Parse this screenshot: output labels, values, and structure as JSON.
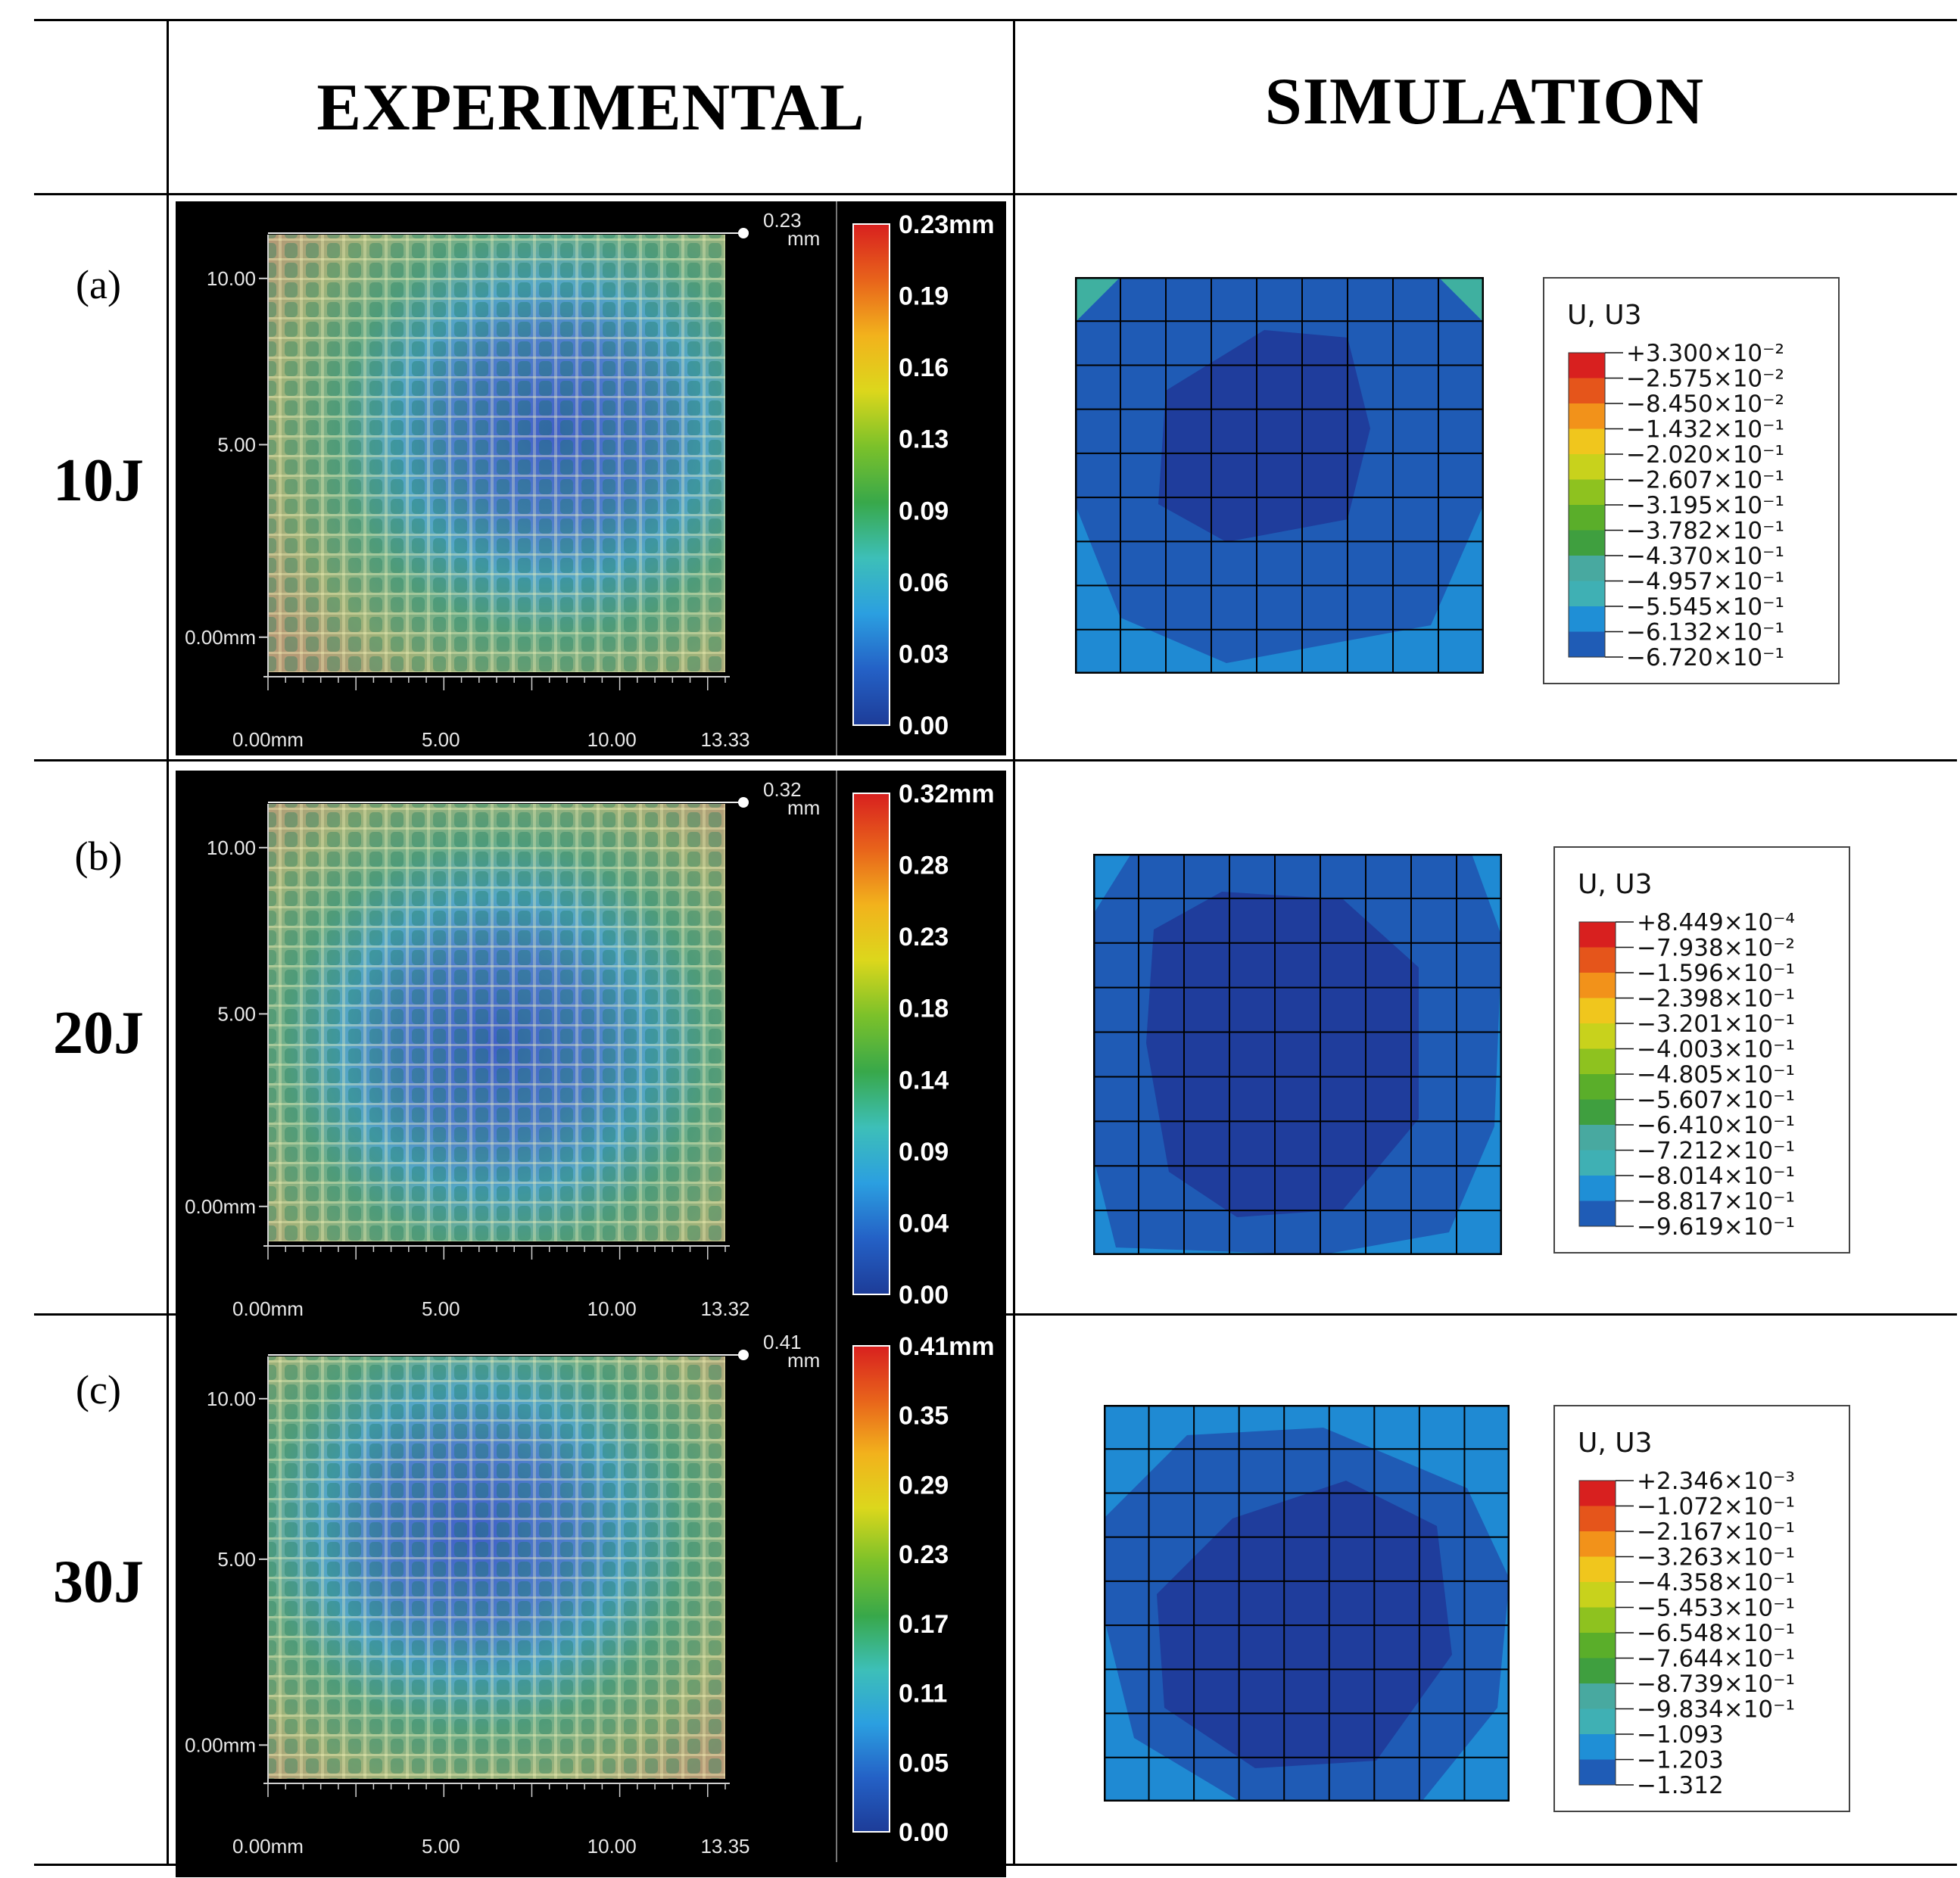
{
  "header": {
    "experimental": "EXPERIMENTAL",
    "simulation": "SIMULATION"
  },
  "colors": {
    "scale": [
      "#1c3f94",
      "#1f5cb6",
      "#1f8fd6",
      "#3fb0b4",
      "#48a9a0",
      "#3f9f3f",
      "#5aae2a",
      "#8ec21f",
      "#c8d21c",
      "#f0c61d",
      "#f2921a",
      "#e5551b",
      "#d8201f"
    ],
    "sim_dark": "#1f3d9c",
    "sim_mid": "#1f5bb5",
    "sim_light": "#1f8ad3"
  },
  "rows": [
    {
      "tag": "(a)",
      "label": "10J",
      "exp": {
        "top_label": "0.23",
        "top_unit": "mm",
        "y_ticks": [
          "10.00",
          "5.00",
          "0.00mm"
        ],
        "x_ticks": [
          "0.00mm",
          "5.00",
          "10.00",
          "13.33"
        ],
        "colorbar": [
          "0.23mm",
          "0.19",
          "0.16",
          "0.13",
          "0.09",
          "0.06",
          "0.03",
          "0.00"
        ]
      },
      "sim": {
        "title": "U, U3",
        "values": [
          "+3.300×10⁻²",
          "−2.575×10⁻²",
          "−8.450×10⁻²",
          "−1.432×10⁻¹",
          "−2.020×10⁻¹",
          "−2.607×10⁻¹",
          "−3.195×10⁻¹",
          "−3.782×10⁻¹",
          "−4.370×10⁻¹",
          "−4.957×10⁻¹",
          "−5.545×10⁻¹",
          "−6.132×10⁻¹",
          "−6.720×10⁻¹"
        ]
      }
    },
    {
      "tag": "(b)",
      "label": "20J",
      "exp": {
        "top_label": "0.32",
        "top_unit": "mm",
        "y_ticks": [
          "10.00",
          "5.00",
          "0.00mm"
        ],
        "x_ticks": [
          "0.00mm",
          "5.00",
          "10.00",
          "13.32"
        ],
        "colorbar": [
          "0.32mm",
          "0.28",
          "0.23",
          "0.18",
          "0.14",
          "0.09",
          "0.04",
          "0.00"
        ]
      },
      "sim": {
        "title": "U, U3",
        "values": [
          "+8.449×10⁻⁴",
          "−7.938×10⁻²",
          "−1.596×10⁻¹",
          "−2.398×10⁻¹",
          "−3.201×10⁻¹",
          "−4.003×10⁻¹",
          "−4.805×10⁻¹",
          "−5.607×10⁻¹",
          "−6.410×10⁻¹",
          "−7.212×10⁻¹",
          "−8.014×10⁻¹",
          "−8.817×10⁻¹",
          "−9.619×10⁻¹"
        ]
      }
    },
    {
      "tag": "(c)",
      "label": "30J",
      "exp": {
        "top_label": "0.41",
        "top_unit": "mm",
        "y_ticks": [
          "10.00",
          "5.00",
          "0.00mm"
        ],
        "x_ticks": [
          "0.00mm",
          "5.00",
          "10.00",
          "13.35"
        ],
        "colorbar": [
          "0.41mm",
          "0.35",
          "0.29",
          "0.23",
          "0.17",
          "0.11",
          "0.05",
          "0.00"
        ]
      },
      "sim": {
        "title": "U, U3",
        "values": [
          "+2.346×10⁻³",
          "−1.072×10⁻¹",
          "−2.167×10⁻¹",
          "−3.263×10⁻¹",
          "−4.358×10⁻¹",
          "−5.453×10⁻¹",
          "−6.548×10⁻¹",
          "−7.644×10⁻¹",
          "−8.739×10⁻¹",
          "−9.834×10⁻¹",
          "−1.093",
          "−1.203",
          "−1.312"
        ]
      }
    }
  ]
}
